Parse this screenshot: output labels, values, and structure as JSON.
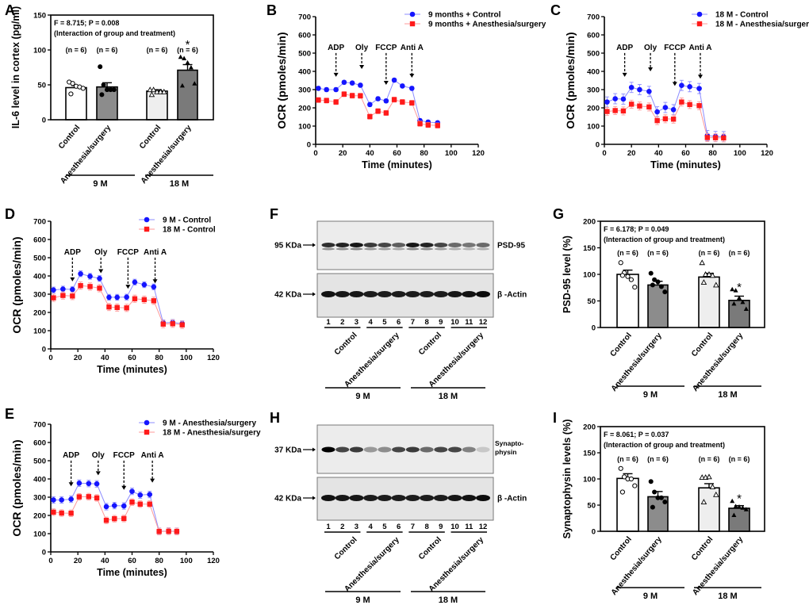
{
  "panels": [
    "A",
    "B",
    "C",
    "D",
    "E",
    "F",
    "G",
    "H",
    "I"
  ],
  "chart_data": [
    {
      "panel": "A",
      "type": "bar",
      "ylabel": "IL-6 level in cortex (pg/ml)",
      "ylim": [
        0,
        150
      ],
      "yticks": [
        "0",
        "50",
        "100",
        "150"
      ],
      "stat_text": "F = 8.715; P = 0.008",
      "stat_note": "(Interaction of group and treatment)",
      "categories": [
        "Control",
        "Anesthesia/surgery",
        "Control",
        "Anesthesia/surgery"
      ],
      "groups": [
        "9 M",
        "18 M"
      ],
      "n_labels": [
        "(n = 6)",
        "(n = 6)",
        "(n = 6)",
        "(n = 6)"
      ],
      "values": [
        46,
        47,
        41,
        71
      ],
      "sem": [
        3,
        6,
        2,
        8
      ],
      "points": [
        [
          54,
          52,
          48,
          47,
          45,
          37
        ],
        [
          76,
          50,
          43,
          43,
          43,
          36
        ],
        [
          43,
          43,
          40,
          40,
          40,
          36
        ],
        [
          90,
          88,
          82,
          75,
          52,
          49
        ]
      ],
      "significance": [
        "",
        "",
        "",
        "*"
      ],
      "bar_colors": [
        "#ffffff",
        "#8c8c8c",
        "#eeeeee",
        "#7a7a7a"
      ],
      "markers": [
        "open-circle",
        "filled-circle",
        "open-triangle",
        "filled-triangle"
      ]
    },
    {
      "panel": "B",
      "type": "line",
      "xlabel": "Time (minutes)",
      "ylabel": "OCR (pmoles/min)",
      "xlim": [
        0,
        120
      ],
      "ylim": [
        0,
        700
      ],
      "xticks": [
        "0",
        "20",
        "40",
        "60",
        "80",
        "100",
        "120"
      ],
      "yticks": [
        "0",
        "100",
        "200",
        "300",
        "400",
        "500",
        "600",
        "700"
      ],
      "x": [
        2,
        8,
        15,
        21,
        27,
        33,
        40,
        46,
        52,
        58,
        64,
        71,
        77,
        83,
        90
      ],
      "series": [
        {
          "name": "9 months + Control",
          "color": "#1515ff",
          "marker": "circle",
          "sem": 10,
          "values": [
            307,
            300,
            300,
            340,
            336,
            324,
            218,
            250,
            238,
            352,
            320,
            307,
            130,
            122,
            118
          ]
        },
        {
          "name": "9 months + Anesthesia/surgery",
          "color": "#ff1a1a",
          "marker": "square",
          "sem": 14,
          "values": [
            243,
            240,
            232,
            275,
            267,
            266,
            152,
            182,
            172,
            245,
            232,
            227,
            113,
            106,
            103
          ]
        }
      ],
      "annotations": [
        {
          "label": "ADP",
          "x": 15,
          "tip": 370
        },
        {
          "label": "Oly",
          "x": 34,
          "tip": 413
        },
        {
          "label": "FCCP",
          "x": 52,
          "tip": 326
        },
        {
          "label": "Anti A",
          "x": 71,
          "tip": 365
        }
      ],
      "legend": "top-right"
    },
    {
      "panel": "C",
      "type": "line",
      "xlabel": "Time (minutes)",
      "ylabel": "OCR (pmoles/min)",
      "xlim": [
        0,
        120
      ],
      "ylim": [
        0,
        700
      ],
      "xticks": [
        "0",
        "20",
        "40",
        "60",
        "80",
        "100",
        "120"
      ],
      "yticks": [
        "0",
        "100",
        "200",
        "300",
        "400",
        "500",
        "600",
        "700"
      ],
      "x": [
        2,
        8,
        14,
        20,
        26,
        33,
        39,
        45,
        51,
        57,
        63,
        70,
        76,
        82,
        88
      ],
      "series": [
        {
          "name": "18 M - Control",
          "color": "#1515ff",
          "marker": "circle",
          "sem": 28,
          "values": [
            232,
            250,
            248,
            312,
            300,
            290,
            178,
            202,
            190,
            323,
            316,
            306,
            48,
            43,
            42
          ]
        },
        {
          "name": "18 M - Anesthesia/surgery",
          "color": "#ff1a1a",
          "marker": "square",
          "sem": 22,
          "values": [
            180,
            185,
            183,
            220,
            210,
            205,
            130,
            140,
            138,
            232,
            218,
            212,
            37,
            36,
            35
          ]
        }
      ],
      "annotations": [
        {
          "label": "ADP",
          "x": 15,
          "tip": 370
        },
        {
          "label": "Oly",
          "x": 34,
          "tip": 400
        },
        {
          "label": "FCCP",
          "x": 52,
          "tip": 320
        },
        {
          "label": "Anti A",
          "x": 70,
          "tip": 360
        }
      ],
      "legend": "top-right"
    },
    {
      "panel": "D",
      "type": "line",
      "xlabel": "Time (minutes)",
      "ylabel": "OCR (pmoles/min)",
      "xlim": [
        0,
        120
      ],
      "ylim": [
        0,
        700
      ],
      "xticks": [
        "0",
        "20",
        "40",
        "60",
        "80",
        "100",
        "120"
      ],
      "yticks": [
        "0",
        "100",
        "200",
        "300",
        "400",
        "500",
        "600",
        "700"
      ],
      "x": [
        2,
        9,
        16,
        22,
        29,
        36,
        43,
        49,
        56,
        62,
        69,
        76,
        83,
        90,
        97
      ],
      "series": [
        {
          "name": "9 M - Control",
          "color": "#1515ff",
          "marker": "circle",
          "sem": 16,
          "values": [
            323,
            328,
            326,
            412,
            398,
            386,
            283,
            283,
            284,
            366,
            352,
            340,
            143,
            145,
            138
          ]
        },
        {
          "name": "18 M - Control",
          "color": "#ff1a1a",
          "marker": "square",
          "sem": 20,
          "values": [
            280,
            293,
            290,
            347,
            342,
            333,
            230,
            227,
            225,
            275,
            270,
            264,
            136,
            138,
            132
          ]
        }
      ],
      "annotations": [
        {
          "label": "ADP",
          "x": 16,
          "tip": 370
        },
        {
          "label": "Oly",
          "x": 37,
          "tip": 415
        },
        {
          "label": "FCCP",
          "x": 57,
          "tip": 330
        },
        {
          "label": "Anti A",
          "x": 77,
          "tip": 360
        }
      ],
      "legend": "top-right"
    },
    {
      "panel": "E",
      "type": "line",
      "xlabel": "Time (minutes)",
      "ylabel": "OCR (pmoles/min)",
      "xlim": [
        0,
        120
      ],
      "ylim": [
        0,
        700
      ],
      "xticks": [
        "0",
        "20",
        "40",
        "60",
        "80",
        "100",
        "120"
      ],
      "yticks": [
        "0",
        "100",
        "200",
        "300",
        "400",
        "500",
        "600",
        "700"
      ],
      "x": [
        2,
        8,
        15,
        21,
        28,
        34,
        41,
        47,
        54,
        60,
        66,
        73,
        80,
        87,
        93
      ],
      "series": [
        {
          "name": "9 M - Anesthesia/surgery",
          "color": "#1515ff",
          "marker": "circle",
          "sem": 18,
          "values": [
            285,
            285,
            289,
            377,
            375,
            373,
            248,
            254,
            252,
            332,
            312,
            315,
            113,
            114,
            113
          ]
        },
        {
          "name": "18 M - Anesthesia/surgery",
          "color": "#ff1a1a",
          "marker": "square",
          "sem": 18,
          "values": [
            218,
            213,
            212,
            302,
            303,
            296,
            173,
            182,
            183,
            273,
            262,
            262,
            112,
            113,
            112
          ]
        }
      ],
      "annotations": [
        {
          "label": "ADP",
          "x": 15,
          "tip": 360
        },
        {
          "label": "Oly",
          "x": 35,
          "tip": 420
        },
        {
          "label": "FCCP",
          "x": 54,
          "tip": 340
        },
        {
          "label": "Anti A",
          "x": 75,
          "tip": 380
        }
      ],
      "legend": "top-right"
    },
    {
      "panel": "G",
      "type": "bar",
      "ylabel": "PSD-95 level (%)",
      "ylim": [
        0,
        200
      ],
      "yticks": [
        "0",
        "50",
        "100",
        "150",
        "200"
      ],
      "stat_text": "F = 6.178; P = 0.049",
      "stat_note": "(Interaction of group and treatment)",
      "categories": [
        "Control",
        "Anesthesia/surgery",
        "Control",
        "Anesthesia/surgery"
      ],
      "groups": [
        "9 M",
        "18 M"
      ],
      "n_labels": [
        "(n = 6)",
        "(n = 6)",
        "(n = 6)",
        "(n = 6)"
      ],
      "values": [
        100,
        80,
        95,
        51
      ],
      "sem": [
        8,
        7,
        7,
        8
      ],
      "points": [
        [
          122,
          103,
          96,
          90,
          76,
          98
        ],
        [
          102,
          90,
          86,
          77,
          67,
          80
        ],
        [
          122,
          100,
          100,
          98,
          80,
          85
        ],
        [
          72,
          70,
          56,
          48,
          35,
          45
        ]
      ],
      "significance": [
        "",
        "",
        "",
        "*"
      ],
      "bar_colors": [
        "#ffffff",
        "#8c8c8c",
        "#eeeeee",
        "#7a7a7a"
      ],
      "markers": [
        "open-circle",
        "filled-circle",
        "open-triangle",
        "filled-triangle"
      ]
    },
    {
      "panel": "I",
      "type": "bar",
      "ylabel": "Synaptophysin levels (%)",
      "ylim": [
        0,
        200
      ],
      "yticks": [
        "0",
        "50",
        "100",
        "150",
        "200"
      ],
      "stat_text": "F = 8.061; P = 0.037",
      "stat_note": "(Interaction of group and treatment)",
      "categories": [
        "Control",
        "Anesthesia/surgery",
        "Control",
        "Anesthesia/surgery"
      ],
      "groups": [
        "9 M",
        "18 M"
      ],
      "n_labels": [
        "(n = 6)",
        "(n = 6)",
        "(n = 6)",
        "(n = 6)"
      ],
      "values": [
        101,
        66,
        83,
        44
      ],
      "sem": [
        9,
        10,
        8,
        5
      ],
      "points": [
        [
          120,
          104,
          100,
          100,
          87,
          75
        ],
        [
          95,
          75,
          64,
          64,
          56,
          46
        ],
        [
          103,
          103,
          104,
          85,
          70,
          56
        ],
        [
          58,
          48,
          47,
          45,
          42,
          31
        ]
      ],
      "significance": [
        "",
        "",
        "",
        "*"
      ],
      "bar_colors": [
        "#ffffff",
        "#8c8c8c",
        "#eeeeee",
        "#7a7a7a"
      ],
      "markers": [
        "open-circle",
        "filled-circle",
        "open-triangle",
        "filled-triangle"
      ]
    }
  ],
  "blots": [
    {
      "panel": "F",
      "target_kda": "95 KDa",
      "target_label": [
        "PSD-95"
      ],
      "control_kda": "42 KDa",
      "control_label": "β -Actin",
      "lanes": [
        "1",
        "2",
        "3",
        "4",
        "5",
        "6",
        "7",
        "8",
        "9",
        "10",
        "11",
        "12"
      ],
      "lane_groups": [
        "Control",
        "Anesthesia/surgery",
        "Control",
        "Anesthesia/surgery"
      ],
      "age_groups": [
        "9 M",
        "18 M"
      ],
      "target_intensity": [
        0.8,
        0.85,
        0.9,
        0.75,
        0.7,
        0.6,
        0.9,
        0.85,
        0.7,
        0.55,
        0.5,
        0.55
      ],
      "control_intensity": [
        0.92,
        0.9,
        0.9,
        0.88,
        0.88,
        0.88,
        0.88,
        0.88,
        0.88,
        0.9,
        0.92,
        0.95
      ]
    },
    {
      "panel": "H",
      "target_kda": "37 KDa",
      "target_label": [
        "Synapto-",
        "physin"
      ],
      "control_kda": "42 KDa",
      "control_label": "β -Actin",
      "lanes": [
        "1",
        "2",
        "3",
        "4",
        "5",
        "6",
        "7",
        "8",
        "9",
        "10",
        "11",
        "12"
      ],
      "lane_groups": [
        "Control",
        "Anesthesia/surgery",
        "Control",
        "Anesthesia/surgery"
      ],
      "age_groups": [
        "9 M",
        "18 M"
      ],
      "target_intensity": [
        1.0,
        0.7,
        0.75,
        0.35,
        0.4,
        0.7,
        0.75,
        0.55,
        0.7,
        0.7,
        0.45,
        0.15
      ],
      "control_intensity": [
        0.92,
        0.9,
        0.9,
        0.88,
        0.88,
        0.88,
        0.88,
        0.88,
        0.88,
        0.9,
        0.92,
        0.95
      ]
    }
  ]
}
